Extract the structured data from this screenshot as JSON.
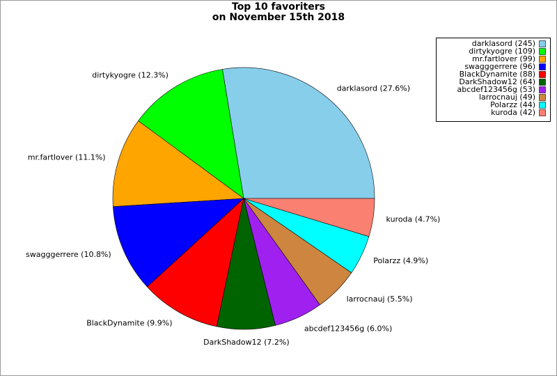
{
  "chart_data": {
    "type": "pie",
    "title": [
      "Top 10 favoriters",
      "on November 15th 2018"
    ],
    "categories": [
      "darklasord (245)",
      "dirtykyogre (109)",
      "mr.fartlover (99)",
      "swagggerrere (96)",
      "BlackDynamite (88)",
      "DarkShadow12 (64)",
      "abcdef123456g (53)",
      "larrocnauj (49)",
      "Polarzz (44)",
      "kuroda (42)"
    ],
    "values": [
      27.6,
      12.3,
      11.1,
      10.8,
      9.9,
      7.2,
      6.0,
      5.5,
      4.9,
      4.7
    ],
    "value_labels": [
      "darklasord (27.6%)",
      "dirtykyogre (12.3%)",
      "mr.fartlover (11.1%)",
      "swagggerrere (10.8%)",
      "BlackDynamite (9.9%)",
      "DarkShadow12 (7.2%)",
      "abcdef123456g (6.0%)",
      "larrocnauj (5.5%)",
      "Polarzz (4.9%)",
      "kuroda (4.7%)"
    ],
    "colors": [
      "#87ceeb",
      "#00ff00",
      "#ffa500",
      "#0000ff",
      "#ff0000",
      "#006400",
      "#a020f0",
      "#cd853f",
      "#00ffff",
      "#fa8072"
    ],
    "legend": "upper right"
  }
}
